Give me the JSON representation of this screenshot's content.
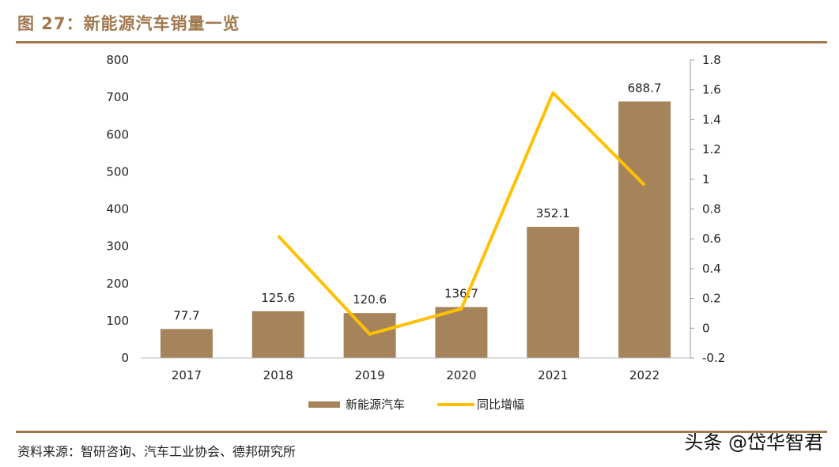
{
  "title": "图 27：新能源汽车销量一览",
  "source": "资料来源：智研咨询、汽车工业协会、德邦研究所",
  "watermark": "头条 @岱华智君",
  "colors": {
    "bar": "#a6845b",
    "line": "#ffc000",
    "title": "#a0784e"
  },
  "chart_data": {
    "type": "bar+line",
    "categories": [
      "2017",
      "2018",
      "2019",
      "2020",
      "2021",
      "2022"
    ],
    "series": [
      {
        "name": "新能源汽车",
        "type": "bar",
        "axis": "left",
        "values": [
          77.7,
          125.6,
          120.6,
          136.7,
          352.1,
          688.7
        ],
        "labels": [
          "77.7",
          "125.6",
          "120.6",
          "136.7",
          "352.1",
          "688.7"
        ]
      },
      {
        "name": "同比增幅",
        "type": "line",
        "axis": "right",
        "values": [
          null,
          0.62,
          -0.04,
          0.13,
          1.58,
          0.96
        ]
      }
    ],
    "y_left": {
      "range": [
        0,
        800
      ],
      "ticks": [
        "0",
        "100",
        "200",
        "300",
        "400",
        "500",
        "600",
        "700",
        "800"
      ]
    },
    "y_right": {
      "range": [
        -0.2,
        1.8
      ],
      "ticks": [
        "-0.2",
        "0",
        "0.2",
        "0.4",
        "0.6",
        "0.8",
        "1",
        "1.2",
        "1.4",
        "1.6",
        "1.8"
      ]
    },
    "legend": {
      "position": "bottom",
      "entries": [
        "新能源汽车",
        "同比增幅"
      ]
    },
    "grid": false
  }
}
